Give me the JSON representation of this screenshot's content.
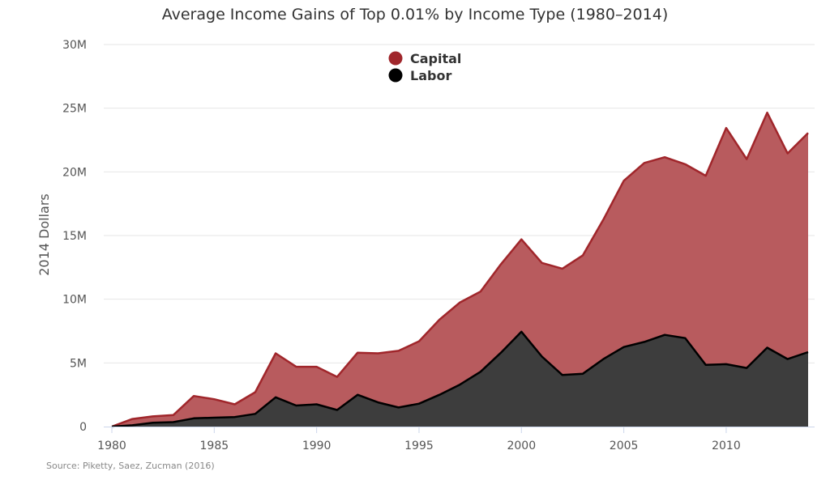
{
  "chart_data": {
    "type": "area",
    "stacked": true,
    "title": "Average Income Gains of Top 0.01% by Income Type (1980–2014)",
    "ylabel": "2014 Dollars",
    "xlabel": "",
    "source": "Source: Piketty, Saez, Zucman (2016)",
    "x": [
      1980,
      1981,
      1982,
      1983,
      1984,
      1985,
      1986,
      1987,
      1988,
      1989,
      1990,
      1991,
      1992,
      1993,
      1994,
      1995,
      1996,
      1997,
      1998,
      1999,
      2000,
      2001,
      2002,
      2003,
      2004,
      2005,
      2006,
      2007,
      2008,
      2009,
      2010,
      2011,
      2012,
      2013,
      2014
    ],
    "xlim": [
      1980,
      2014
    ],
    "ylim": [
      0,
      30000000
    ],
    "x_ticks": [
      1980,
      1985,
      1990,
      1995,
      2000,
      2005,
      2010
    ],
    "x_tick_labels": [
      "1980",
      "1985",
      "1990",
      "1995",
      "2000",
      "2005",
      "2010"
    ],
    "y_ticks": [
      0,
      5000000,
      10000000,
      15000000,
      20000000,
      25000000,
      30000000
    ],
    "y_tick_labels": [
      "0",
      "5M",
      "10M",
      "15M",
      "20M",
      "25M",
      "30M"
    ],
    "grid": true,
    "legend_position": "top-center",
    "legend": [
      "Capital",
      "Labor"
    ],
    "series": [
      {
        "name": "Labor",
        "color": "#000000",
        "fill": "#3d3d3d",
        "values": [
          0,
          100000,
          300000,
          350000,
          650000,
          700000,
          750000,
          1000000,
          2300000,
          1650000,
          1750000,
          1300000,
          2500000,
          1900000,
          1500000,
          1800000,
          2500000,
          3300000,
          4300000,
          5800000,
          7450000,
          5500000,
          4050000,
          4150000,
          5300000,
          6250000,
          6650000,
          7200000,
          6950000,
          4850000,
          4900000,
          4600000,
          6200000,
          5300000,
          5850000
        ]
      },
      {
        "name": "Capital",
        "color": "#a0262b",
        "fill": "#b85b5e",
        "values": [
          0,
          500000,
          500000,
          550000,
          1750000,
          1450000,
          1000000,
          1700000,
          3450000,
          3050000,
          2950000,
          2600000,
          3300000,
          3850000,
          4450000,
          4900000,
          5900000,
          6450000,
          6300000,
          6950000,
          7250000,
          7350000,
          8350000,
          9300000,
          10950000,
          13050000,
          14050000,
          13950000,
          13650000,
          14850000,
          18550000,
          16400000,
          18450000,
          16150000,
          17200000
        ]
      }
    ],
    "totals": [
      0,
      600000,
      800000,
      900000,
      2400000,
      2150000,
      1750000,
      2700000,
      5750000,
      4700000,
      4700000,
      3900000,
      5800000,
      5750000,
      5950000,
      6700000,
      8400000,
      9750000,
      10600000,
      12750000,
      14700000,
      12850000,
      12400000,
      13450000,
      16250000,
      19300000,
      20700000,
      21150000,
      20600000,
      19700000,
      23450000,
      21000000,
      24650000,
      21450000,
      23050000
    ]
  }
}
